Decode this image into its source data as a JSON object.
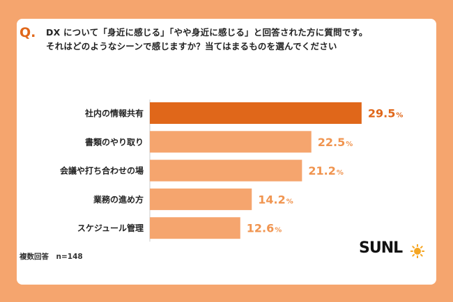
{
  "question": {
    "mark": "Q.",
    "line1": "DX について「身近に感じる」「やや身近に感じる」と回答された方に質問です。",
    "line2": "それはどのようなシーンで感じますか？当てはまるものを選んでください"
  },
  "footnote": "複数回答　n=148",
  "logo": {
    "text": "SUNL"
  },
  "colors": {
    "background": "#F5A56E",
    "highlight_bar": "#E0671A",
    "bar": "#F5A56E",
    "highlight_label": "#E0671A",
    "label": "#F0944F"
  },
  "chart_data": {
    "type": "bar",
    "orientation": "horizontal",
    "categories": [
      "社内の情報共有",
      "書類のやり取り",
      "会議や打ち合わせの場",
      "業務の進め方",
      "スケジュール管理"
    ],
    "values": [
      29.5,
      22.5,
      21.2,
      14.2,
      12.6
    ],
    "value_labels": [
      "29.5",
      "22.5",
      "21.2",
      "14.2",
      "12.6"
    ],
    "unit": "%",
    "xlim": [
      0,
      35
    ],
    "grid": false,
    "legend": "none"
  }
}
